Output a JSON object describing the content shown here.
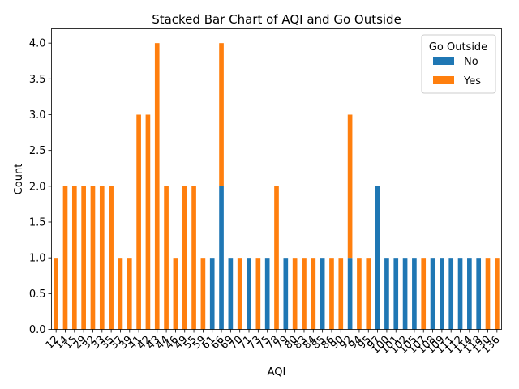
{
  "chart_data": {
    "type": "bar",
    "stacked": true,
    "title": "Stacked Bar Chart of AQI and Go Outside",
    "xlabel": "AQI",
    "ylabel": "Count",
    "ylim": [
      0,
      4.2
    ],
    "yticks": [
      "0.0",
      "0.5",
      "1.0",
      "1.5",
      "2.0",
      "2.5",
      "3.0",
      "3.5",
      "4.0"
    ],
    "ytick_values": [
      0,
      0.5,
      1.0,
      1.5,
      2.0,
      2.5,
      3.0,
      3.5,
      4.0
    ],
    "grid": false,
    "legend": {
      "title": "Go Outside",
      "placement": "top-right"
    },
    "categories": [
      "12",
      "14",
      "15",
      "29",
      "32",
      "33",
      "35",
      "37",
      "39",
      "41",
      "42",
      "43",
      "44",
      "46",
      "49",
      "55",
      "59",
      "61",
      "66",
      "69",
      "70",
      "71",
      "73",
      "75",
      "78",
      "79",
      "80",
      "83",
      "84",
      "85",
      "86",
      "90",
      "92",
      "94",
      "95",
      "97",
      "100",
      "101",
      "102",
      "105",
      "107",
      "108",
      "109",
      "111",
      "112",
      "114",
      "118",
      "130",
      "136"
    ],
    "series": [
      {
        "name": "No",
        "color": "#1f77b4",
        "values": [
          0,
          0,
          0,
          0,
          0,
          0,
          0,
          0,
          0,
          0,
          0,
          0,
          0,
          0,
          0,
          0,
          0,
          1,
          2,
          1,
          0,
          1,
          0,
          1,
          0,
          1,
          0,
          0,
          0,
          1,
          0,
          0,
          1,
          0,
          0,
          2,
          1,
          1,
          1,
          1,
          0,
          1,
          1,
          1,
          1,
          1,
          1,
          0,
          0
        ]
      },
      {
        "name": "Yes",
        "color": "#ff7f0e",
        "values": [
          1,
          2,
          2,
          2,
          2,
          2,
          2,
          1,
          1,
          3,
          3,
          4,
          2,
          1,
          2,
          2,
          1,
          0,
          2,
          0,
          1,
          0,
          1,
          0,
          2,
          0,
          1,
          1,
          1,
          0,
          1,
          1,
          2,
          1,
          1,
          0,
          0,
          0,
          0,
          0,
          1,
          0,
          0,
          0,
          0,
          0,
          0,
          1,
          1
        ]
      }
    ]
  }
}
